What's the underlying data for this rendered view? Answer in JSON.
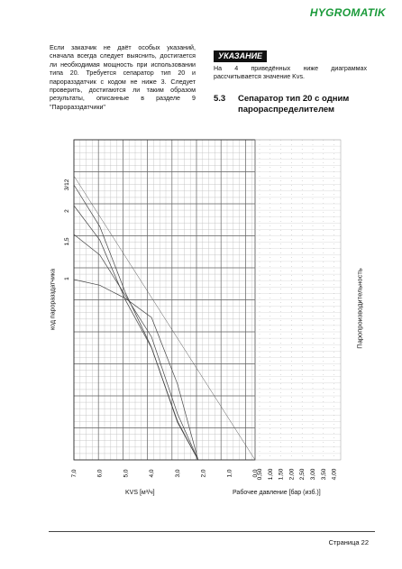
{
  "header": {
    "logo_main": "HYGROMATIK"
  },
  "left_paragraph": "Если заказчик не даёт особых указаний, сначала всегда следует выяснить, достигается ли необходимая мощность при использовании типа 20. Требуется сепаратор тип 20 и пароразздатчик с кодом не ниже 3. Следует проверить, достигаются ли таким образом результаты, описанные в разделе 9 \"Пароразздатчики\"",
  "note": {
    "badge": "УКАЗАНИЕ",
    "text": "На 4 приведённых ниже диаграммах рассчитывается значение Kvs."
  },
  "section": {
    "number": "5.3",
    "title": "Сепаратор тип 20 с одним парораспределителем"
  },
  "chart_data": {
    "type": "line",
    "title": "",
    "xlabel": "KVS [м³/ч]",
    "ylabel": "код пароразздатчика",
    "pressure_axis_label": "Рабочее давление [бар (изб.)]",
    "output_axis_label": "Паропроизводительность",
    "kvs_ticks": [
      "7,0",
      "6,0",
      "5,0",
      "4,0",
      "3,0",
      "2,0",
      "1,0",
      "0,0"
    ],
    "pressure_ticks": [
      "0,50",
      "1,00",
      "1,50",
      "2,00",
      "2,50",
      "3,00",
      "3,50",
      "4,00"
    ],
    "code_ticks": [
      "3/12",
      "2",
      "1,5",
      "1"
    ],
    "series": [
      {
        "code": "3/12",
        "points": [
          [
            7.0,
            3.3
          ],
          [
            6.0,
            2.8
          ],
          [
            5.0,
            2.0
          ],
          [
            4.0,
            1.35
          ],
          [
            3.0,
            0.45
          ],
          [
            2.2,
            0.0
          ]
        ]
      },
      {
        "code": "2",
        "points": [
          [
            7.0,
            2.95
          ],
          [
            6.0,
            2.55
          ],
          [
            5.0,
            1.85
          ],
          [
            4.0,
            1.3
          ],
          [
            3.0,
            0.45
          ],
          [
            2.2,
            0.0
          ]
        ]
      },
      {
        "code": "1,5",
        "points": [
          [
            7.0,
            2.2
          ],
          [
            6.0,
            2.0
          ],
          [
            5.0,
            1.6
          ],
          [
            4.0,
            1.2
          ],
          [
            3.0,
            0.45
          ],
          [
            2.2,
            0.0
          ]
        ]
      },
      {
        "code": "1",
        "points": [
          [
            7.0,
            0.95
          ],
          [
            6.0,
            0.92
          ],
          [
            5.0,
            0.85
          ],
          [
            4.0,
            0.75
          ],
          [
            3.0,
            0.4
          ],
          [
            2.2,
            0.0
          ]
        ]
      }
    ]
  },
  "footer": {
    "page": "Страница 22"
  }
}
